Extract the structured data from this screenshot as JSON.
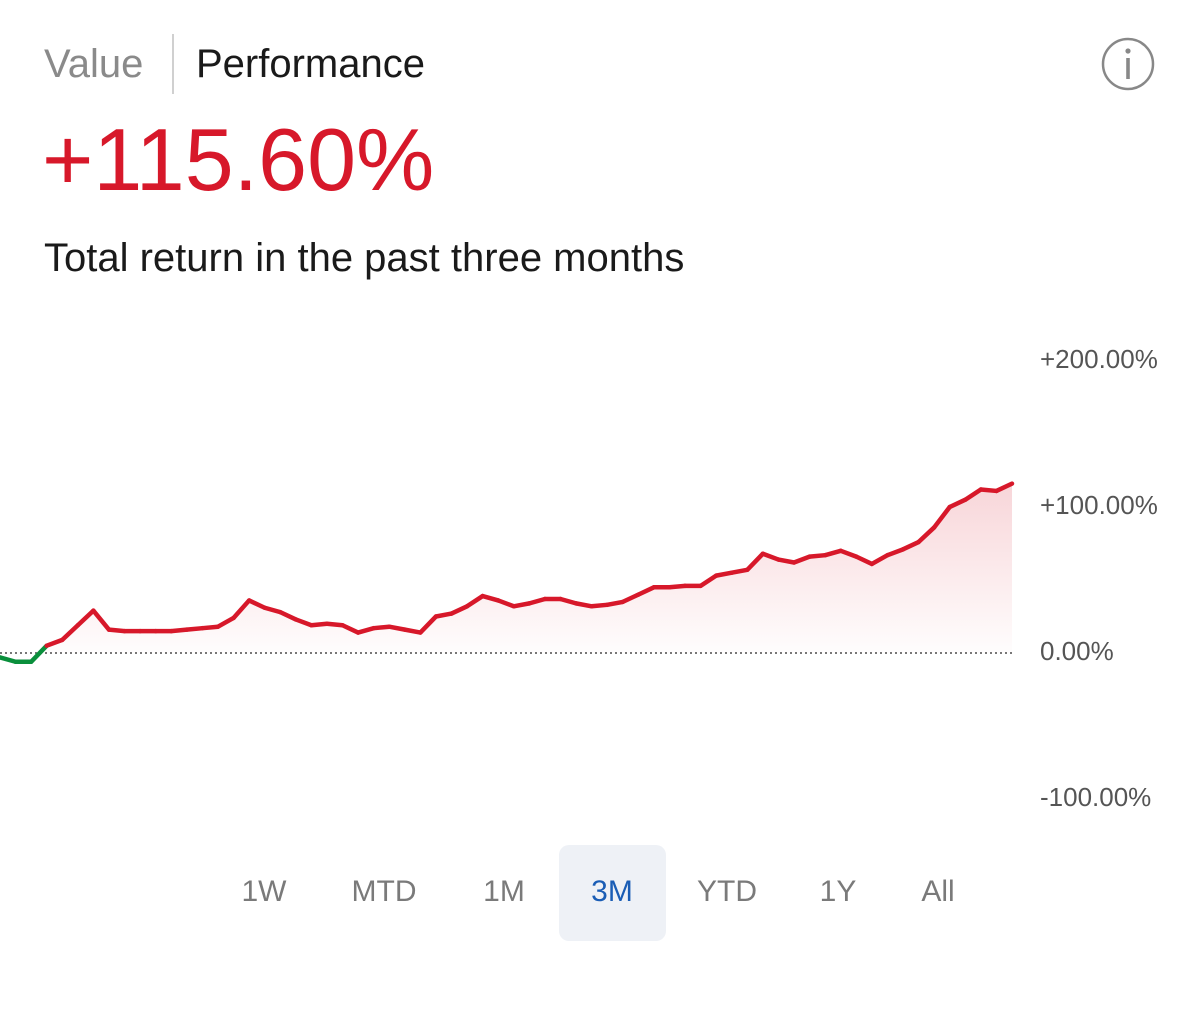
{
  "tabs": [
    {
      "label": "Value",
      "active": false
    },
    {
      "label": "Performance",
      "active": true
    }
  ],
  "headline": "+115.60%",
  "subtitle": "Total return in the past three months",
  "chart_data": {
    "type": "line",
    "ylim": [
      -100,
      200
    ],
    "yticks": [
      {
        "value": 200,
        "label": "+200.00%"
      },
      {
        "value": 100,
        "label": "+100.00%"
      },
      {
        "value": 0,
        "label": "0.00%"
      },
      {
        "value": -100,
        "label": "-100.00%"
      }
    ],
    "grid": false,
    "zero_line": true,
    "up_color": "#d7182a",
    "down_color": "#0a8f3c",
    "values": [
      -3,
      -6,
      -6,
      5,
      9,
      19,
      29,
      16,
      15,
      15,
      15,
      15,
      16,
      17,
      18,
      24,
      36,
      31,
      28,
      23,
      19,
      20,
      19,
      14,
      17,
      18,
      16,
      14,
      25,
      27,
      32,
      39,
      36,
      32,
      34,
      37,
      37,
      34,
      32,
      33,
      35,
      40,
      45,
      45,
      46,
      46,
      53,
      55,
      57,
      68,
      64,
      62,
      66,
      67,
      70,
      66,
      61,
      67,
      71,
      76,
      86,
      100,
      105,
      112,
      111,
      116
    ]
  },
  "ranges": [
    {
      "label": "1W",
      "selected": false
    },
    {
      "label": "MTD",
      "selected": false
    },
    {
      "label": "1M",
      "selected": false
    },
    {
      "label": "3M",
      "selected": true
    },
    {
      "label": "YTD",
      "selected": false
    },
    {
      "label": "1Y",
      "selected": false
    },
    {
      "label": "All",
      "selected": false
    }
  ]
}
